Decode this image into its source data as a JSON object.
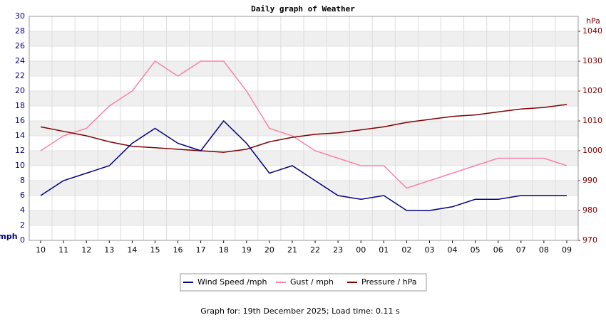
{
  "chart_data": {
    "type": "line",
    "title": "Daily graph of Weather",
    "y_label": "mph",
    "y2_label": "hPa",
    "footer": "Graph for: 19th December 2025; Load time: 0.11 s",
    "categories": [
      "10",
      "11",
      "12",
      "13",
      "14",
      "15",
      "16",
      "17",
      "18",
      "19",
      "20",
      "21",
      "22",
      "23",
      "00",
      "01",
      "02",
      "03",
      "04",
      "05",
      "06",
      "07",
      "08",
      "09"
    ],
    "series": [
      {
        "name": "Wind Speed /mph",
        "color": "#000080",
        "values": [
          6,
          8,
          9,
          10,
          13,
          15,
          13,
          12,
          16,
          13,
          9,
          10,
          8,
          6,
          5.5,
          6,
          4,
          4,
          4.5,
          5.5,
          5.5,
          6,
          6,
          6
        ]
      },
      {
        "name": "Gust / mph",
        "color": "#f783a8",
        "values": [
          12,
          14,
          15,
          18,
          20,
          24,
          22,
          24,
          24,
          20,
          15,
          14,
          12,
          11,
          10,
          10,
          7,
          8,
          9,
          10,
          11,
          11,
          11,
          10
        ]
      },
      {
        "name": "Pressure / hPa",
        "color": "#800000",
        "axis": "y2",
        "values": [
          1008,
          1006.5,
          1005,
          1003,
          1001.5,
          1001,
          1000.5,
          1000,
          999.5,
          1000.5,
          1003,
          1004.5,
          1005.5,
          1006,
          1007,
          1008,
          1009.5,
          1010.5,
          1011.5,
          1012,
          1013,
          1014,
          1014.5,
          1015.5
        ]
      }
    ],
    "ylim": [
      0,
      30
    ],
    "yticks": [
      0,
      2,
      4,
      6,
      8,
      10,
      12,
      14,
      16,
      18,
      20,
      22,
      24,
      26,
      28,
      30
    ],
    "y2lim": [
      970,
      1045
    ],
    "y2ticks": [
      970,
      980,
      990,
      1000,
      1010,
      1020,
      1030,
      1040
    ],
    "grid": true,
    "legend": "bottom"
  }
}
